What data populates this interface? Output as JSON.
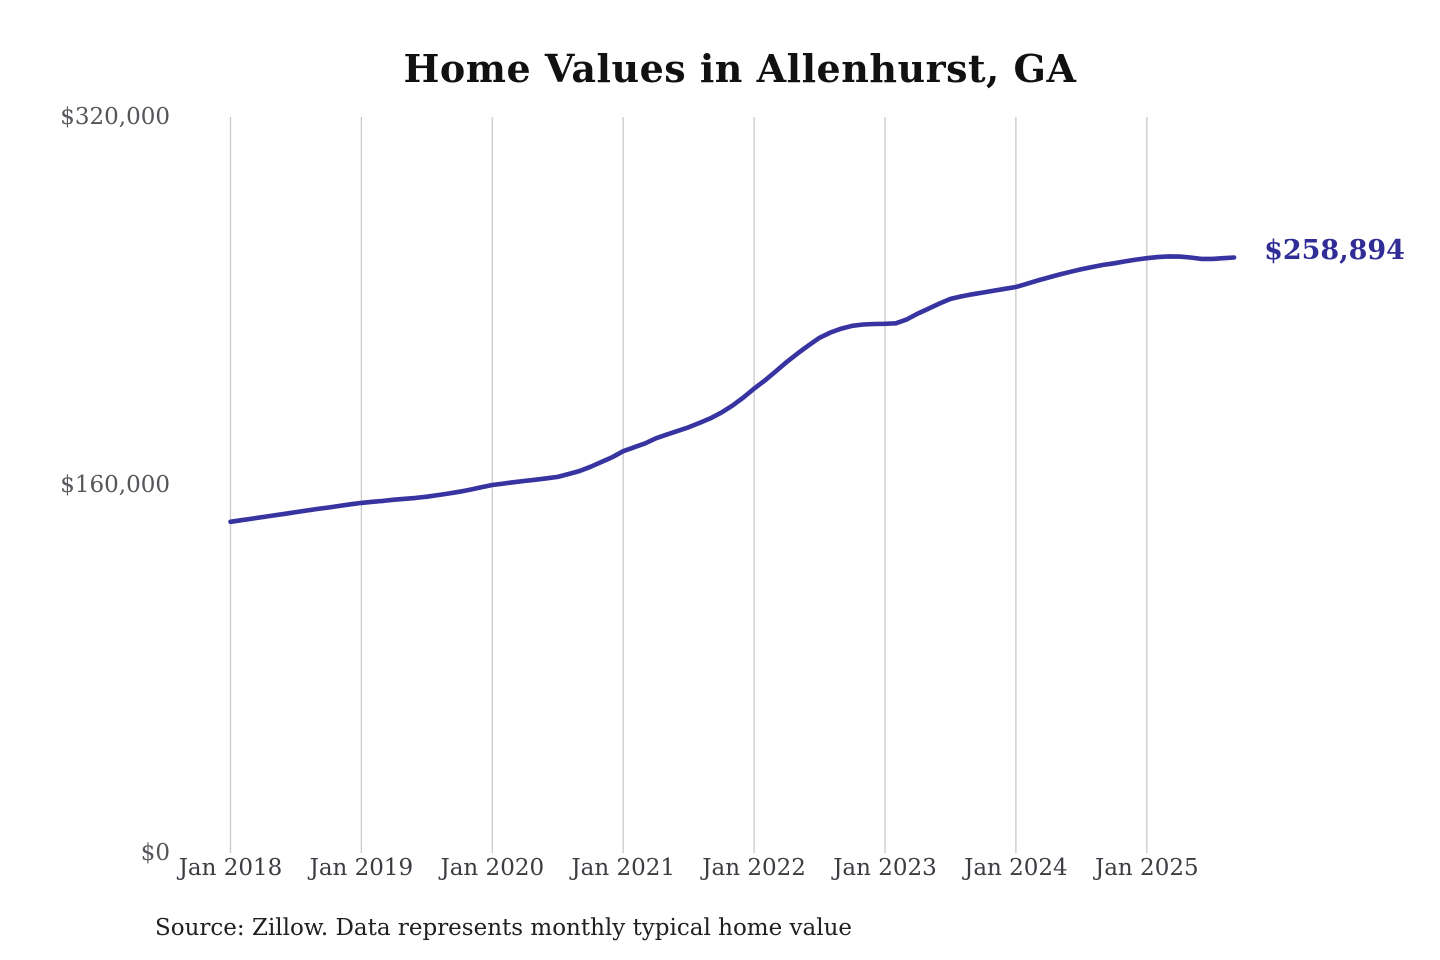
{
  "chart_data": {
    "type": "line",
    "title": "Home Values in Allenhurst, GA",
    "source_note": "Source: Zillow. Data represents monthly typical home value",
    "end_label": "$258,894",
    "end_value": 258894,
    "xlabel": "",
    "ylabel": "",
    "ylim": [
      0,
      320000
    ],
    "grid": "vertical-only",
    "legend_position": "none",
    "colors": {
      "line": "#3733a0",
      "end_label": "#302d96",
      "gridline": "#c9c9c9",
      "y_tick_text": "#55565a",
      "x_tick_text": "#3c3d42",
      "title_text": "#111111",
      "source_text": "#202020",
      "background": "#ffffff"
    },
    "y_ticks": [
      {
        "label": "$0",
        "value": 0
      },
      {
        "label": "$160,000",
        "value": 160000
      },
      {
        "label": "$320,000",
        "value": 320000
      }
    ],
    "x_ticks": [
      {
        "label": "Jan 2018",
        "month_index": 0
      },
      {
        "label": "Jan 2019",
        "month_index": 12
      },
      {
        "label": "Jan 2020",
        "month_index": 24
      },
      {
        "label": "Jan 2021",
        "month_index": 36
      },
      {
        "label": "Jan 2022",
        "month_index": 48
      },
      {
        "label": "Jan 2023",
        "month_index": 60
      },
      {
        "label": "Jan 2024",
        "month_index": 72
      },
      {
        "label": "Jan 2025",
        "month_index": 84
      }
    ],
    "series": [
      {
        "name": "typical-home-value",
        "x": [
          "2018-01",
          "2018-02",
          "2018-03",
          "2018-04",
          "2018-05",
          "2018-06",
          "2018-07",
          "2018-08",
          "2018-09",
          "2018-10",
          "2018-11",
          "2018-12",
          "2019-01",
          "2019-02",
          "2019-03",
          "2019-04",
          "2019-05",
          "2019-06",
          "2019-07",
          "2019-08",
          "2019-09",
          "2019-10",
          "2019-11",
          "2019-12",
          "2020-01",
          "2020-02",
          "2020-03",
          "2020-04",
          "2020-05",
          "2020-06",
          "2020-07",
          "2020-08",
          "2020-09",
          "2020-10",
          "2020-11",
          "2020-12",
          "2021-01",
          "2021-02",
          "2021-03",
          "2021-04",
          "2021-05",
          "2021-06",
          "2021-07",
          "2021-08",
          "2021-09",
          "2021-10",
          "2021-11",
          "2021-12",
          "2022-01",
          "2022-02",
          "2022-03",
          "2022-04",
          "2022-05",
          "2022-06",
          "2022-07",
          "2022-08",
          "2022-09",
          "2022-10",
          "2022-11",
          "2022-12",
          "2023-01",
          "2023-02",
          "2023-03",
          "2023-04",
          "2023-05",
          "2023-06",
          "2023-07",
          "2023-08",
          "2023-09",
          "2023-10",
          "2023-11",
          "2023-12",
          "2024-01",
          "2024-02",
          "2024-03",
          "2024-04",
          "2024-05",
          "2024-06",
          "2024-07",
          "2024-08",
          "2024-09",
          "2024-10",
          "2024-11",
          "2024-12",
          "2025-01",
          "2025-02",
          "2025-03",
          "2025-04",
          "2025-05",
          "2025-06",
          "2025-07",
          "2025-08",
          "2025-09"
        ],
        "values": [
          144000,
          144700,
          145400,
          146100,
          146800,
          147500,
          148200,
          148900,
          149600,
          150200,
          150900,
          151600,
          152200,
          152700,
          153100,
          153600,
          154000,
          154400,
          154900,
          155600,
          156300,
          157100,
          158000,
          159000,
          160000,
          160600,
          161200,
          161800,
          162300,
          162900,
          163500,
          164800,
          166100,
          167900,
          170000,
          172100,
          174700,
          176400,
          178100,
          180300,
          181900,
          183500,
          185100,
          187000,
          189000,
          191500,
          194500,
          198000,
          201900,
          205500,
          209500,
          213500,
          217200,
          220700,
          224000,
          226300,
          228000,
          229200,
          229800,
          230000,
          230100,
          230300,
          232000,
          234500,
          236700,
          238900,
          240900,
          242000,
          242900,
          243700,
          244500,
          245300,
          246100,
          247500,
          248900,
          250200,
          251500,
          252700,
          253800,
          254800,
          255700,
          256400,
          257200,
          258000,
          258600,
          259100,
          259400,
          259300,
          258900,
          258300,
          258300,
          258600,
          258894
        ]
      }
    ]
  }
}
